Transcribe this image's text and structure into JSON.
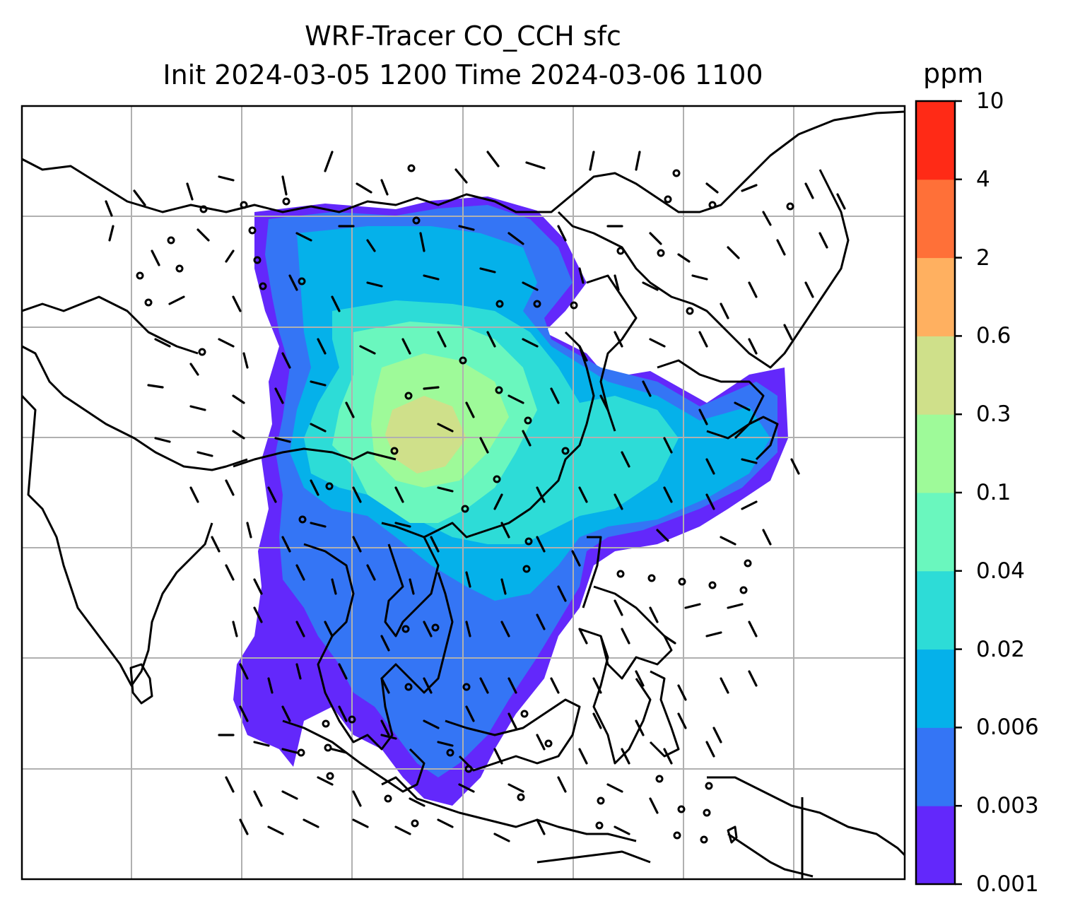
{
  "title": {
    "line1": "WRF-Tracer CO_CCH sfc",
    "line2": "Init 2024-03-05 1200 Time 2024-03-06 1100"
  },
  "colorbar": {
    "unit": "ppm",
    "levels": [
      "0.001",
      "0.003",
      "0.006",
      "0.02",
      "0.04",
      "0.1",
      "0.3",
      "0.6",
      "2",
      "4",
      "10"
    ],
    "colors": [
      "#6328fb",
      "#3475f5",
      "#05b1ea",
      "#2ddcd7",
      "#6af7be",
      "#9efa99",
      "#cfe08a",
      "#ffb060",
      "#ff7038",
      "#ff2a16"
    ]
  },
  "map": {
    "field": "CO_CCH surface concentration",
    "overlay": "wind barbs",
    "gridlines": true,
    "coastlines": true
  }
}
